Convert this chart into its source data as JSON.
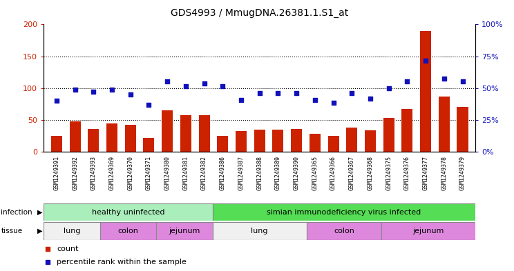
{
  "title": "GDS4993 / MmugDNA.26381.1.S1_at",
  "samples": [
    "GSM1249391",
    "GSM1249392",
    "GSM1249393",
    "GSM1249369",
    "GSM1249370",
    "GSM1249371",
    "GSM1249380",
    "GSM1249381",
    "GSM1249382",
    "GSM1249386",
    "GSM1249387",
    "GSM1249388",
    "GSM1249389",
    "GSM1249390",
    "GSM1249365",
    "GSM1249366",
    "GSM1249367",
    "GSM1249368",
    "GSM1249375",
    "GSM1249376",
    "GSM1249377",
    "GSM1249378",
    "GSM1249379"
  ],
  "counts": [
    25,
    48,
    36,
    45,
    42,
    22,
    65,
    57,
    57,
    25,
    33,
    35,
    35,
    36,
    28,
    25,
    38,
    34,
    53,
    67,
    190,
    87,
    70
  ],
  "percentiles_left_scale": [
    80,
    98,
    94,
    98,
    90,
    74,
    110,
    103,
    107,
    103,
    81,
    92,
    92,
    92,
    81,
    77,
    92,
    84,
    100,
    110,
    143,
    115,
    110
  ],
  "bar_color": "#CC2200",
  "dot_color": "#1111BB",
  "left_ylim": [
    0,
    200
  ],
  "left_yticks": [
    0,
    50,
    100,
    150,
    200
  ],
  "right_ylim": [
    0,
    100
  ],
  "right_yticks": [
    0,
    25,
    50,
    75,
    100
  ],
  "infection_healthy_color": "#AAEEBB",
  "infection_infected_color": "#55DD55",
  "tissue_lung_color": "#F0F0F0",
  "tissue_colon_color": "#DD88DD",
  "tissue_jejunum_color": "#DD88DD",
  "sample_bg_color": "#D8D8D8"
}
